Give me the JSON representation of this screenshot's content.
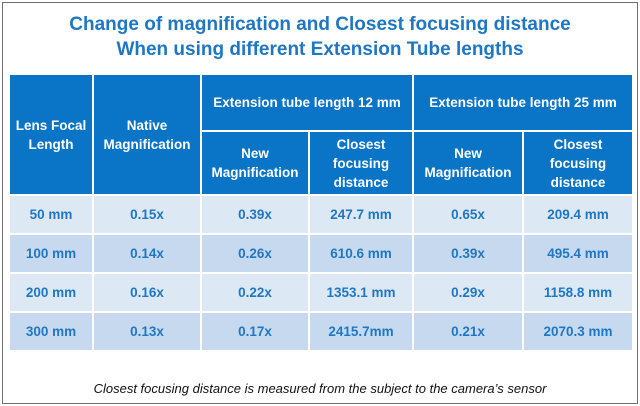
{
  "title": {
    "line1": "Change of magnification and Closest focusing distance",
    "line2": "When using different Extension Tube lengths"
  },
  "table": {
    "headers": {
      "focal_length": "Lens Focal Length",
      "native_mag": "Native Magnification",
      "group_12": "Extension tube length 12 mm",
      "group_25": "Extension tube length 25 mm",
      "new_mag": "New Magnification",
      "closest_dist": "Closest focusing distance"
    },
    "rows": [
      [
        "50 mm",
        "0.15x",
        "0.39x",
        "247.7 mm",
        "0.65x",
        "209.4 mm"
      ],
      [
        "100 mm",
        "0.14x",
        "0.26x",
        "610.6 mm",
        "0.39x",
        "495.4 mm"
      ],
      [
        "200 mm",
        "0.16x",
        "0.22x",
        "1353.1 mm",
        "0.29x",
        "1158.8 mm"
      ],
      [
        "300 mm",
        "0.13x",
        "0.17x",
        "2415.7mm",
        "0.21x",
        "2070.3 mm"
      ]
    ]
  },
  "caption": "Closest focusing distance is measured from the subject to the camera’s sensor",
  "colors": {
    "header_bg": "#0a74c7",
    "title_text": "#1f77c4",
    "row_light": "#dde8f5",
    "row_dark": "#c7d9ee"
  }
}
